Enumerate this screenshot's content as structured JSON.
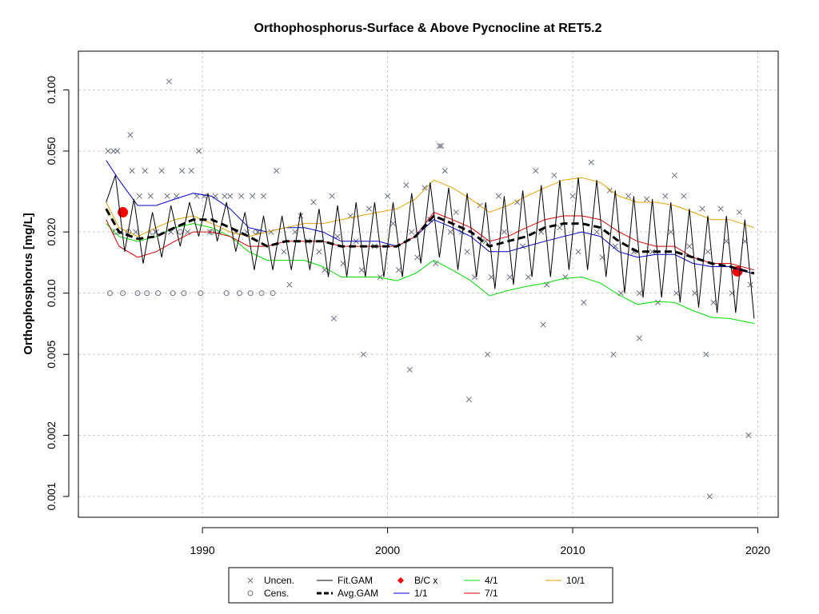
{
  "chart_data": {
    "type": "scatter",
    "title": "Orthophosphorus-Surface & Above Pycnocline at RET5.2",
    "xlabel": "",
    "ylabel": "Orthophosphorus [mg/L]",
    "x_scale": "linear",
    "y_scale": "log",
    "xlim": [
      1983.3,
      2021.1
    ],
    "ylim": [
      0.00079,
      0.155
    ],
    "x_ticks": [
      1990,
      2000,
      2010,
      2020
    ],
    "y_ticks": [
      0.001,
      0.002,
      0.005,
      0.01,
      0.02,
      0.05,
      0.1
    ],
    "y_tick_labels": [
      "0.001",
      "0.002",
      "0.005",
      "0.010",
      "0.020",
      "0.050",
      "0.100"
    ],
    "grid": true,
    "legend_position": "bottom",
    "legend": [
      {
        "label": "Uncen.",
        "symbol": "x",
        "color": "#6b7080"
      },
      {
        "label": "Cens.",
        "symbol": "o",
        "color": "#6b7080"
      },
      {
        "label": "Fit.GAM",
        "symbol": "line",
        "color": "#000000"
      },
      {
        "label": "Avg.GAM",
        "symbol": "dashed",
        "color": "#000000"
      },
      {
        "label": "B/C x",
        "symbol": "diamond",
        "color": "#ff0000"
      },
      {
        "label": "1/1",
        "symbol": "line",
        "color": "#0000cc"
      },
      {
        "label": "4/1",
        "symbol": "line",
        "color": "#00dd00"
      },
      {
        "label": "7/1",
        "symbol": "line",
        "color": "#dd0000"
      },
      {
        "label": "10/1",
        "symbol": "line",
        "color": "#e8a000"
      }
    ],
    "series": [
      {
        "name": "Uncen.",
        "kind": "points",
        "marker": "x",
        "color": "#6b7080",
        "x": [
          1984.9,
          1985.2,
          1985.4,
          1985.6,
          1986.2,
          1986.4,
          1986.6,
          1986.9,
          1987.2,
          1987.5,
          1987.8,
          1988.1,
          1988.3,
          1988.6,
          1988.9,
          1989.2,
          1989.4,
          1989.7,
          1990.1,
          1990.4,
          1990.7,
          1990.9,
          1991.2,
          1991.5,
          1991.8,
          1992.1,
          1992.4,
          1992.7,
          1993.0,
          1993.3,
          1993.7,
          1994.0,
          1994.4,
          1994.7,
          1995.0,
          1995.3,
          1995.7,
          1996.0,
          1996.3,
          1996.6,
          1997.0,
          1997.3,
          1997.6,
          1998.0,
          1998.3,
          1998.6,
          1999.0,
          1999.3,
          1999.6,
          2000.0,
          2000.3,
          2000.6,
          2001.0,
          2001.3,
          2001.6,
          2002.0,
          2002.3,
          2002.6,
          2002.9,
          2003.1,
          2003.4,
          2003.7,
          2004.0,
          2004.3,
          2004.7,
          2005.0,
          2005.3,
          2005.6,
          2006.0,
          2006.3,
          2006.6,
          2007.0,
          2007.3,
          2007.6,
          2008.0,
          2008.3,
          2008.6,
          2009.0,
          2009.3,
          2009.6,
          2010.0,
          2010.3,
          2010.6,
          2011.0,
          2011.3,
          2011.6,
          2012.0,
          2012.3,
          2012.6,
          2013.0,
          2013.3,
          2013.6,
          2014.0,
          2014.3,
          2014.6,
          2015.0,
          2015.3,
          2015.6,
          2016.0,
          2016.3,
          2016.6,
          2017.0,
          2017.3,
          2017.6,
          2018.0,
          2018.3,
          2018.6,
          2019.0,
          2019.3,
          2019.6,
          1986.1,
          1988.2,
          1989.8,
          1997.1,
          1998.7,
          2001.2,
          2004.4,
          2005.4,
          2012.2,
          2015.5,
          2017.4,
          2017.2,
          2019.5,
          2013.6,
          2002.8,
          2008.4
        ],
        "y": [
          0.05,
          0.05,
          0.05,
          0.02,
          0.04,
          0.02,
          0.03,
          0.04,
          0.03,
          0.02,
          0.04,
          0.03,
          0.02,
          0.03,
          0.04,
          0.02,
          0.04,
          0.03,
          0.03,
          0.02,
          0.03,
          0.02,
          0.03,
          0.03,
          0.02,
          0.03,
          0.02,
          0.03,
          0.02,
          0.03,
          0.02,
          0.04,
          0.016,
          0.011,
          0.02,
          0.024,
          0.018,
          0.028,
          0.016,
          0.013,
          0.03,
          0.019,
          0.014,
          0.024,
          0.018,
          0.013,
          0.026,
          0.017,
          0.012,
          0.03,
          0.022,
          0.013,
          0.034,
          0.02,
          0.015,
          0.033,
          0.023,
          0.014,
          0.053,
          0.04,
          0.02,
          0.025,
          0.02,
          0.016,
          0.012,
          0.027,
          0.018,
          0.012,
          0.03,
          0.02,
          0.012,
          0.028,
          0.017,
          0.012,
          0.04,
          0.02,
          0.011,
          0.038,
          0.021,
          0.012,
          0.03,
          0.016,
          0.009,
          0.044,
          0.02,
          0.015,
          0.032,
          0.017,
          0.01,
          0.03,
          0.016,
          0.01,
          0.029,
          0.016,
          0.009,
          0.03,
          0.02,
          0.01,
          0.03,
          0.017,
          0.01,
          0.026,
          0.016,
          0.009,
          0.026,
          0.018,
          0.01,
          0.025,
          0.018,
          0.011,
          0.06,
          0.11,
          0.05,
          0.0075,
          0.005,
          0.0042,
          0.003,
          0.005,
          0.005,
          0.038,
          0.001,
          0.005,
          0.002,
          0.006,
          0.053,
          0.007
        ]
      },
      {
        "name": "Cens.",
        "kind": "points",
        "marker": "o",
        "color": "#6b7080",
        "x": [
          1985.0,
          1985.7,
          1986.0,
          1986.5,
          1987.0,
          1987.6,
          1988.4,
          1989.0,
          1989.9,
          1991.3,
          1992.0,
          1992.6,
          1993.2,
          1993.8,
          1985.3,
          1987.3,
          1988.8,
          1990.5,
          1992.9
        ],
        "y": [
          0.01,
          0.01,
          0.02,
          0.01,
          0.01,
          0.01,
          0.01,
          0.01,
          0.01,
          0.01,
          0.01,
          0.01,
          0.01,
          0.01,
          0.02,
          0.02,
          0.02,
          0.02,
          0.02
        ]
      },
      {
        "name": "B/C x",
        "kind": "points",
        "marker": "dot",
        "color": "#ff0000",
        "x": [
          1985.7,
          2018.9
        ],
        "y": [
          0.025,
          0.0128
        ]
      },
      {
        "name": "1/1",
        "kind": "line",
        "color": "#0000cc",
        "x": [
          1984.8,
          1985.5,
          1986.5,
          1987.5,
          1988.5,
          1989.5,
          1990.5,
          1991.5,
          1992.5,
          1993.5,
          1994.5,
          1995.5,
          1996.5,
          1997.5,
          1998.5,
          1999.5,
          2000.5,
          2001.5,
          2002.5,
          2003.5,
          2004.5,
          2005.5,
          2006.5,
          2007.5,
          2008.5,
          2009.5,
          2010.5,
          2011.5,
          2012.5,
          2013.5,
          2014.5,
          2015.5,
          2016.5,
          2017.5,
          2018.5,
          2019.7
        ],
        "y": [
          0.045,
          0.036,
          0.027,
          0.027,
          0.029,
          0.031,
          0.03,
          0.026,
          0.021,
          0.02,
          0.021,
          0.021,
          0.02,
          0.018,
          0.018,
          0.018,
          0.017,
          0.019,
          0.023,
          0.021,
          0.019,
          0.016,
          0.016,
          0.017,
          0.018,
          0.019,
          0.02,
          0.019,
          0.016,
          0.015,
          0.0155,
          0.0155,
          0.014,
          0.0135,
          0.0135,
          0.0125
        ]
      },
      {
        "name": "4/1",
        "kind": "line",
        "color": "#00dd00",
        "x": [
          1984.8,
          1985.5,
          1986.5,
          1987.5,
          1988.5,
          1989.5,
          1990.5,
          1991.5,
          1992.5,
          1993.5,
          1994.5,
          1995.5,
          1996.5,
          1997.5,
          1998.5,
          1999.5,
          2000.5,
          2001.5,
          2002.5,
          2003.5,
          2004.5,
          2005.5,
          2006.5,
          2007.5,
          2008.5,
          2009.5,
          2010.5,
          2011.5,
          2012.5,
          2013.5,
          2014.5,
          2015.5,
          2016.5,
          2017.5,
          2018.5,
          2019.8
        ],
        "y": [
          0.022,
          0.019,
          0.018,
          0.019,
          0.021,
          0.022,
          0.021,
          0.019,
          0.016,
          0.0145,
          0.0145,
          0.0145,
          0.0135,
          0.012,
          0.012,
          0.012,
          0.0115,
          0.0125,
          0.0145,
          0.013,
          0.0115,
          0.0097,
          0.0103,
          0.0108,
          0.0112,
          0.0118,
          0.012,
          0.0112,
          0.0098,
          0.0088,
          0.0091,
          0.009,
          0.0082,
          0.0076,
          0.0075,
          0.0071
        ]
      },
      {
        "name": "7/1",
        "kind": "line",
        "color": "#dd0000",
        "x": [
          1984.8,
          1985.5,
          1986.5,
          1987.5,
          1988.5,
          1989.5,
          1990.5,
          1991.5,
          1992.5,
          1993.5,
          1994.5,
          1995.5,
          1996.5,
          1997.5,
          1998.5,
          1999.5,
          2000.5,
          2001.5,
          2002.5,
          2003.5,
          2004.5,
          2005.5,
          2006.5,
          2007.5,
          2008.5,
          2009.5,
          2010.5,
          2011.5,
          2012.5,
          2013.5,
          2014.5,
          2015.5,
          2016.5,
          2017.5,
          2018.5,
          2019.8
        ],
        "y": [
          0.023,
          0.017,
          0.015,
          0.016,
          0.018,
          0.02,
          0.02,
          0.019,
          0.017,
          0.017,
          0.018,
          0.018,
          0.018,
          0.017,
          0.017,
          0.017,
          0.017,
          0.019,
          0.025,
          0.023,
          0.021,
          0.018,
          0.019,
          0.021,
          0.023,
          0.024,
          0.024,
          0.023,
          0.02,
          0.018,
          0.017,
          0.017,
          0.015,
          0.014,
          0.014,
          0.013
        ]
      },
      {
        "name": "10/1",
        "kind": "line",
        "color": "#e8a000",
        "x": [
          1984.8,
          1985.5,
          1986.5,
          1987.5,
          1988.5,
          1989.5,
          1990.5,
          1991.5,
          1992.5,
          1993.5,
          1994.5,
          1995.5,
          1996.5,
          1997.5,
          1998.5,
          1999.5,
          2000.5,
          2001.5,
          2002.5,
          2003.5,
          2004.5,
          2005.5,
          2006.5,
          2007.5,
          2008.5,
          2009.5,
          2010.5,
          2011.5,
          2012.5,
          2013.5,
          2014.5,
          2015.5,
          2016.5,
          2017.5,
          2018.5,
          2019.8
        ],
        "y": [
          0.028,
          0.021,
          0.019,
          0.021,
          0.023,
          0.024,
          0.022,
          0.02,
          0.019,
          0.02,
          0.021,
          0.022,
          0.022,
          0.023,
          0.024,
          0.025,
          0.026,
          0.029,
          0.036,
          0.033,
          0.029,
          0.025,
          0.027,
          0.03,
          0.033,
          0.036,
          0.037,
          0.035,
          0.03,
          0.028,
          0.028,
          0.027,
          0.025,
          0.023,
          0.023,
          0.021
        ]
      },
      {
        "name": "Avg.GAM",
        "kind": "line",
        "dashed": true,
        "color": "#000000",
        "x": [
          1984.8,
          1985.5,
          1986.5,
          1987.5,
          1988.5,
          1989.5,
          1990.5,
          1991.5,
          1992.5,
          1993.5,
          1994.5,
          1995.5,
          1996.5,
          1997.5,
          1998.5,
          1999.5,
          2000.5,
          2001.5,
          2002.5,
          2003.5,
          2004.5,
          2005.5,
          2006.5,
          2007.5,
          2008.5,
          2009.5,
          2010.5,
          2011.5,
          2012.5,
          2013.5,
          2014.5,
          2015.5,
          2016.5,
          2017.5,
          2018.5,
          2019.8
        ],
        "y": [
          0.026,
          0.02,
          0.0185,
          0.019,
          0.021,
          0.023,
          0.023,
          0.021,
          0.019,
          0.017,
          0.018,
          0.018,
          0.018,
          0.017,
          0.017,
          0.017,
          0.017,
          0.019,
          0.024,
          0.022,
          0.02,
          0.017,
          0.018,
          0.019,
          0.021,
          0.022,
          0.022,
          0.021,
          0.018,
          0.016,
          0.016,
          0.016,
          0.015,
          0.014,
          0.0135,
          0.0125
        ]
      },
      {
        "name": "Fit.GAM",
        "kind": "line",
        "color": "#000000",
        "x": [
          1984.8,
          1985.3,
          1985.8,
          1986.3,
          1986.8,
          1987.3,
          1987.8,
          1988.3,
          1988.8,
          1989.3,
          1989.8,
          1990.3,
          1990.8,
          1991.3,
          1991.8,
          1992.3,
          1992.8,
          1993.3,
          1993.8,
          1994.3,
          1994.8,
          1995.3,
          1995.8,
          1996.3,
          1996.8,
          1997.3,
          1997.8,
          1998.3,
          1998.8,
          1999.3,
          1999.8,
          2000.3,
          2000.8,
          2001.3,
          2001.8,
          2002.3,
          2002.8,
          2003.3,
          2003.8,
          2004.3,
          2004.8,
          2005.3,
          2005.8,
          2006.3,
          2006.8,
          2007.3,
          2007.8,
          2008.3,
          2008.8,
          2009.3,
          2009.8,
          2010.3,
          2010.8,
          2011.3,
          2011.8,
          2012.3,
          2012.8,
          2013.3,
          2013.8,
          2014.3,
          2014.8,
          2015.3,
          2015.8,
          2016.3,
          2016.8,
          2017.3,
          2017.8,
          2018.3,
          2018.8,
          2019.3,
          2019.8
        ],
        "y": [
          0.028,
          0.038,
          0.016,
          0.029,
          0.014,
          0.025,
          0.015,
          0.027,
          0.017,
          0.028,
          0.019,
          0.031,
          0.018,
          0.028,
          0.016,
          0.025,
          0.013,
          0.024,
          0.013,
          0.024,
          0.013,
          0.025,
          0.013,
          0.026,
          0.012,
          0.027,
          0.012,
          0.028,
          0.012,
          0.028,
          0.012,
          0.028,
          0.012,
          0.031,
          0.014,
          0.035,
          0.015,
          0.033,
          0.013,
          0.031,
          0.012,
          0.028,
          0.0105,
          0.03,
          0.011,
          0.032,
          0.012,
          0.034,
          0.012,
          0.036,
          0.013,
          0.037,
          0.013,
          0.036,
          0.012,
          0.032,
          0.01,
          0.03,
          0.0095,
          0.029,
          0.0095,
          0.028,
          0.009,
          0.026,
          0.0085,
          0.024,
          0.008,
          0.024,
          0.008,
          0.023,
          0.0075
        ]
      }
    ]
  }
}
